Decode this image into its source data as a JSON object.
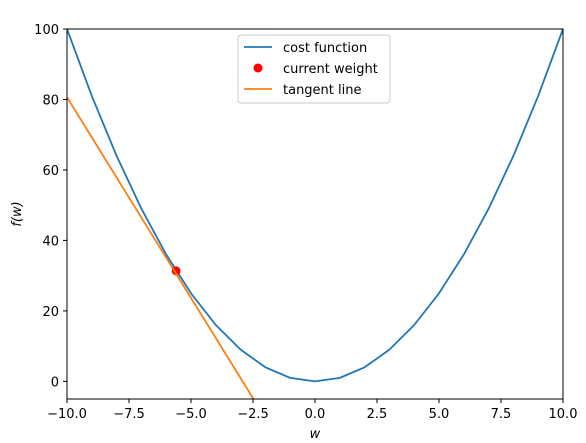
{
  "chart_data": {
    "type": "line",
    "title": "",
    "xlabel": "w",
    "ylabel": "f(w)",
    "xlim": [
      -10,
      10
    ],
    "ylim": [
      -5,
      100
    ],
    "grid": false,
    "legend_position": "top-center",
    "x_ticks": [
      -10.0,
      -7.5,
      -5.0,
      -2.5,
      0.0,
      2.5,
      5.0,
      7.5,
      10.0
    ],
    "x_tick_labels": [
      "−10.0",
      "−7.5",
      "−5.0",
      "−2.5",
      "0.0",
      "2.5",
      "5.0",
      "7.5",
      "10.0"
    ],
    "y_ticks": [
      0,
      20,
      40,
      60,
      80,
      100
    ],
    "y_tick_labels": [
      "0",
      "20",
      "40",
      "60",
      "80",
      "100"
    ],
    "series": [
      {
        "name": "cost function",
        "kind": "line",
        "color": "#1f77b4",
        "x": [
          -10,
          -9,
          -8,
          -7,
          -6,
          -5,
          -4,
          -3,
          -2,
          -1,
          0,
          1,
          2,
          3,
          4,
          5,
          6,
          7,
          8,
          9,
          10
        ],
        "y": [
          100,
          81,
          64,
          49,
          36,
          25,
          16,
          9,
          4,
          1,
          0,
          1,
          4,
          9,
          16,
          25,
          36,
          49,
          64,
          81,
          100
        ]
      },
      {
        "name": "current weight",
        "kind": "scatter",
        "color": "#ff0000",
        "x": [
          -5.6
        ],
        "y": [
          31.36
        ]
      },
      {
        "name": "tangent line",
        "kind": "line",
        "color": "#ff7f0e",
        "x": [
          -10,
          -2.48
        ],
        "y": [
          80.64,
          -5
        ]
      }
    ]
  }
}
